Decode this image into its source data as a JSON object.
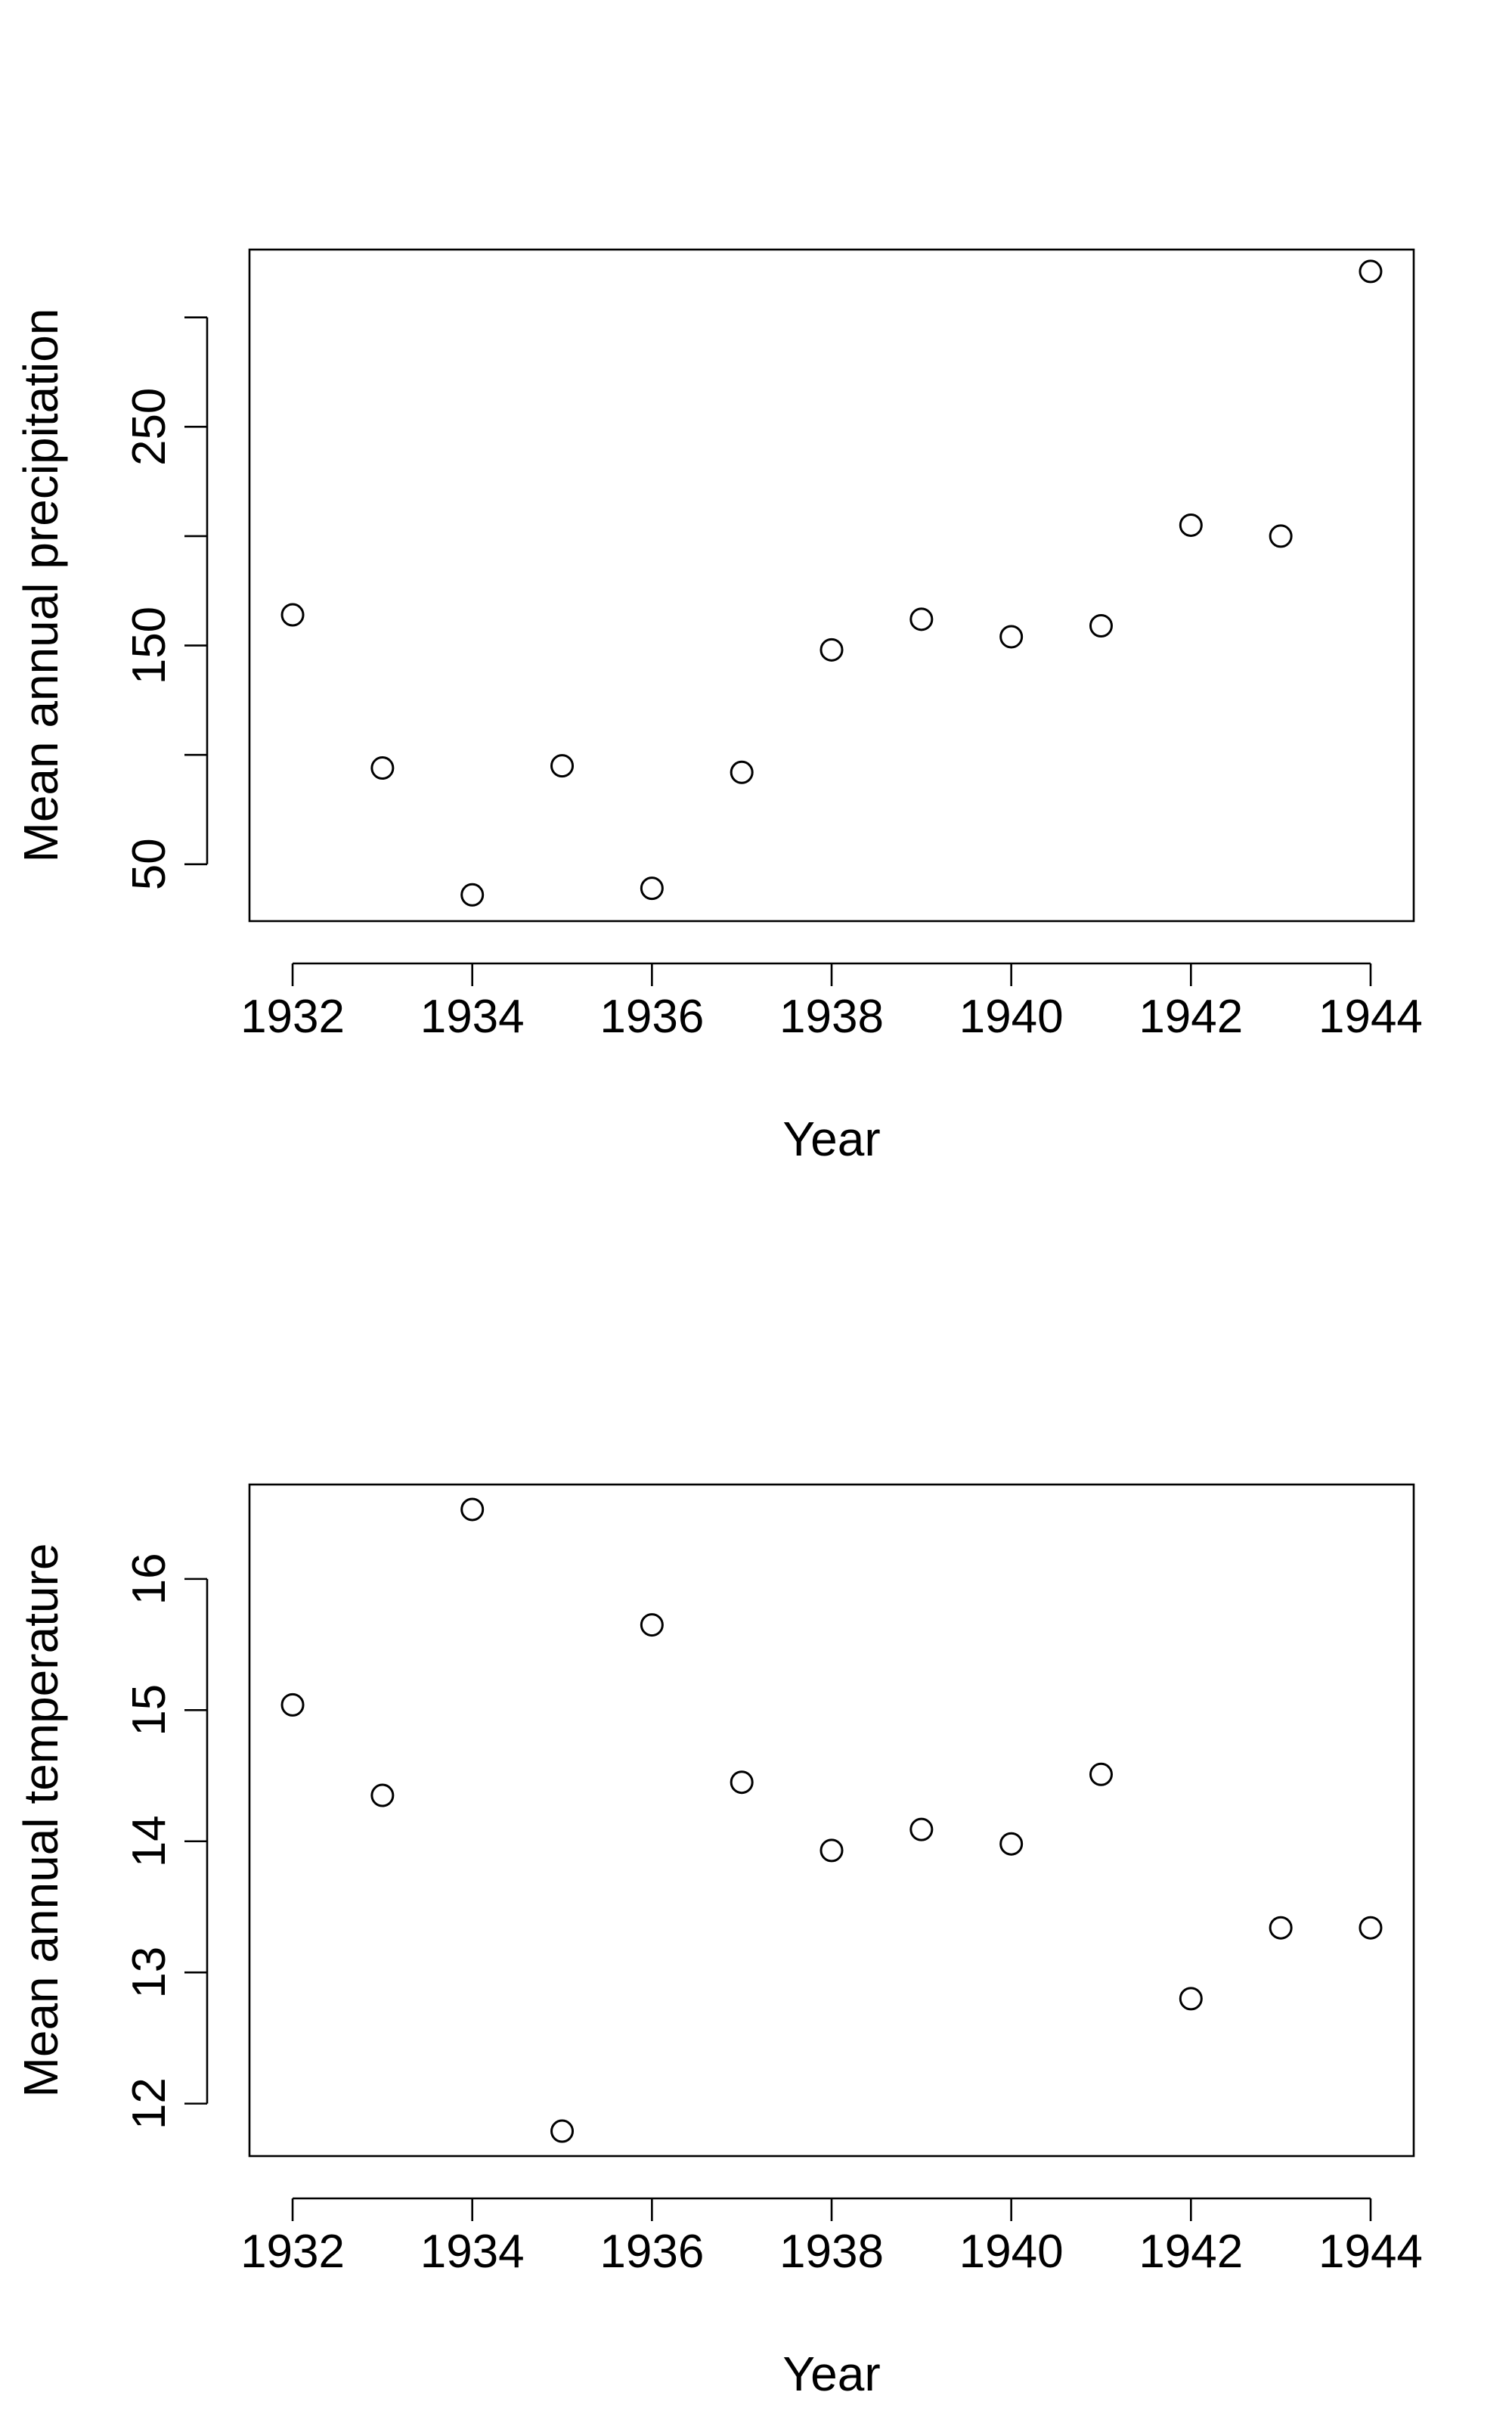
{
  "chart_data": [
    {
      "type": "scatter",
      "xlabel": "Year",
      "ylabel": "Mean annual precipitation",
      "x": [
        1932,
        1933,
        1934,
        1935,
        1936,
        1937,
        1938,
        1939,
        1940,
        1941,
        1942,
        1943,
        1944
      ],
      "y": [
        164,
        94,
        36,
        95,
        39,
        92,
        148,
        162,
        154,
        159,
        205,
        200,
        321
      ],
      "xlim": [
        1931.52,
        1944.48
      ],
      "ylim": [
        24,
        331
      ],
      "xticks": [
        1932,
        1934,
        1936,
        1938,
        1940,
        1942,
        1944
      ],
      "yticks": [
        50,
        100,
        150,
        200,
        250,
        300
      ],
      "ytick_labels": [
        "50",
        "",
        "150",
        "",
        "250",
        ""
      ],
      "grid": false,
      "legend": "none"
    },
    {
      "type": "scatter",
      "xlabel": "Year",
      "ylabel": "Mean annual temperature",
      "x": [
        1932,
        1933,
        1934,
        1935,
        1936,
        1937,
        1938,
        1939,
        1940,
        1941,
        1942,
        1943,
        1944
      ],
      "y": [
        15.04,
        14.35,
        16.53,
        11.79,
        15.65,
        14.45,
        13.93,
        14.09,
        13.98,
        14.51,
        12.8,
        13.34,
        13.34
      ],
      "xlim": [
        1931.52,
        1944.48
      ],
      "ylim": [
        11.6,
        16.72
      ],
      "xticks": [
        1932,
        1934,
        1936,
        1938,
        1940,
        1942,
        1944
      ],
      "yticks": [
        12,
        13,
        14,
        15,
        16
      ],
      "ytick_labels": [
        "12",
        "13",
        "14",
        "15",
        "16"
      ],
      "grid": false,
      "legend": "none"
    }
  ]
}
